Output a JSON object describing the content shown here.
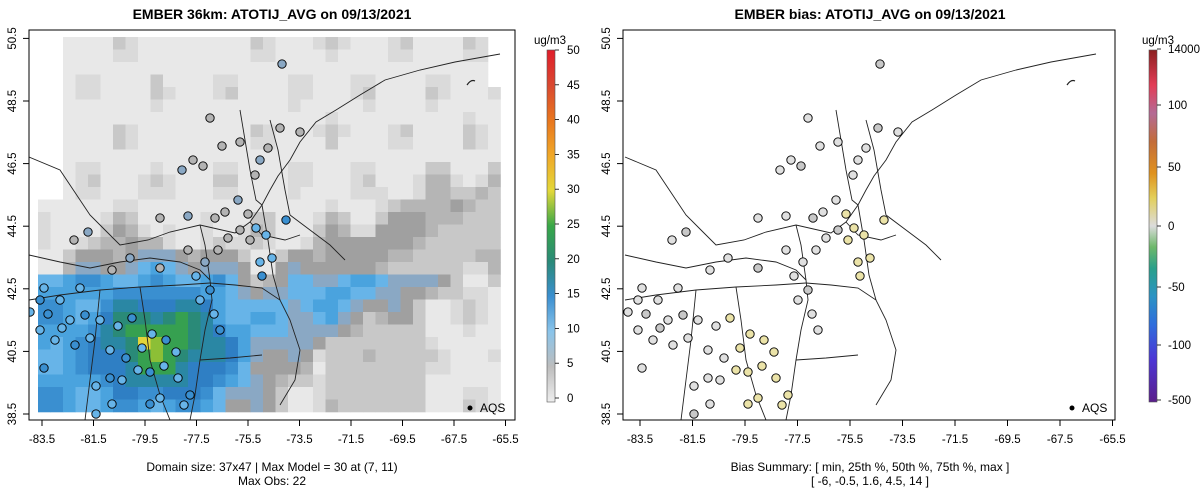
{
  "left_panel": {
    "title": "EMBER 36km: ATOTIJ_AVG on 09/13/2021",
    "x_ticks": [
      "-83.5",
      "-81.5",
      "-79.5",
      "-77.5",
      "-75.5",
      "-73.5",
      "-71.5",
      "-69.5",
      "-67.5",
      "-65.5"
    ],
    "y_ticks": [
      "38.5",
      "40.5",
      "42.5",
      "44.5",
      "46.5",
      "48.5",
      "50.5"
    ],
    "legend_label": "AQS",
    "colorbar_unit": "ug/m3",
    "colorbar_ticks": [
      "0",
      "5",
      "10",
      "15",
      "20",
      "25",
      "30",
      "35",
      "40",
      "45",
      "50"
    ],
    "caption_line1": "Domain size: 37x47 | Max Model = 30 at (7, 11)",
    "caption_line2": "Max Obs: 22"
  },
  "right_panel": {
    "title": "EMBER bias: ATOTIJ_AVG on 09/13/2021",
    "x_ticks": [
      "-83.5",
      "-81.5",
      "-79.5",
      "-77.5",
      "-75.5",
      "-73.5",
      "-71.5",
      "-69.5",
      "-67.5",
      "-65.5"
    ],
    "y_ticks": [
      "38.5",
      "40.5",
      "42.5",
      "44.5",
      "46.5",
      "48.5",
      "50.5"
    ],
    "legend_label": "AQS",
    "colorbar_unit": "ug/m3",
    "colorbar_ticks": [
      "-500",
      "-100",
      "-50",
      "0",
      "50",
      "100",
      "14000"
    ],
    "caption_line1": "Bias Summary: [ min, 25th %, 50th %, 75th %, max ]",
    "caption_line2": "[ -6,   -0.5,   1.6,   4.5,   14 ]"
  },
  "colors": {
    "model_scale": [
      "#e6e6e6",
      "#cccccc",
      "#b3b3b3",
      "#999999",
      "#62aee6",
      "#4096d6",
      "#2f7fc4",
      "#2b8a7c",
      "#2fa046",
      "#8bbf35",
      "#e0d13a",
      "#f0a424",
      "#e87a1e",
      "#d94a2a",
      "#e0407a",
      "#e35a8a"
    ],
    "bias_scale": [
      "#5a1e8a",
      "#5b3fcf",
      "#2f5fd8",
      "#2d87c9",
      "#2aa08a",
      "#3aa64a",
      "#cfcfcf",
      "#e3cf5a",
      "#e09020",
      "#c66a35",
      "#b46690",
      "#e33c56",
      "#e31a1c",
      "#8b2020"
    ]
  },
  "chart_data": {
    "type": "heatmap",
    "lon_range": [
      -84.0,
      -65.0
    ],
    "lat_range": [
      38.3,
      50.6
    ],
    "model_max": 30,
    "model_max_cell": [
      7,
      11
    ],
    "domain_size": "37x47",
    "max_obs": 22,
    "bias_summary": {
      "min": -6,
      "p25": -0.5,
      "p50": 1.6,
      "p75": 4.5,
      "max": 14
    }
  }
}
